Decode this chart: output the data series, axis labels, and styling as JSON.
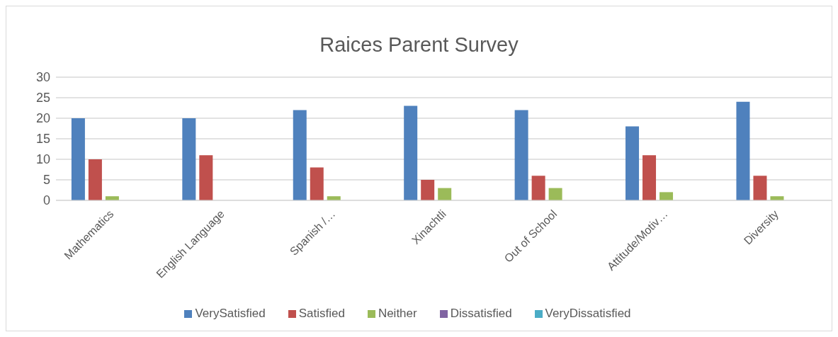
{
  "chart_data": {
    "type": "bar",
    "title": "Raices Parent Survey",
    "categories": [
      "Mathematics",
      "English Language",
      "Spanish /…",
      "Xinachtli",
      "Out of School",
      "Attitude/Motiv…",
      "Diversity"
    ],
    "series": [
      {
        "name": "VerySatisfied",
        "color": "#4f81bd",
        "values": [
          20,
          20,
          22,
          23,
          22,
          18,
          24
        ]
      },
      {
        "name": "Satisfied",
        "color": "#c0504d",
        "values": [
          10,
          11,
          8,
          5,
          6,
          11,
          6
        ]
      },
      {
        "name": "Neither",
        "color": "#9bbb59",
        "values": [
          1,
          0,
          1,
          3,
          3,
          2,
          1
        ]
      },
      {
        "name": "Dissatisfied",
        "color": "#8064a2",
        "values": [
          0,
          0,
          0,
          0,
          0,
          0,
          0
        ]
      },
      {
        "name": "VeryDissatisfied",
        "color": "#4bacc6",
        "values": [
          0,
          0,
          0,
          0,
          0,
          0,
          0
        ]
      }
    ],
    "ylim": [
      0,
      30
    ],
    "yticks": [
      0,
      5,
      10,
      15,
      20,
      25,
      30
    ],
    "grid": "y",
    "legend": "bottom"
  }
}
